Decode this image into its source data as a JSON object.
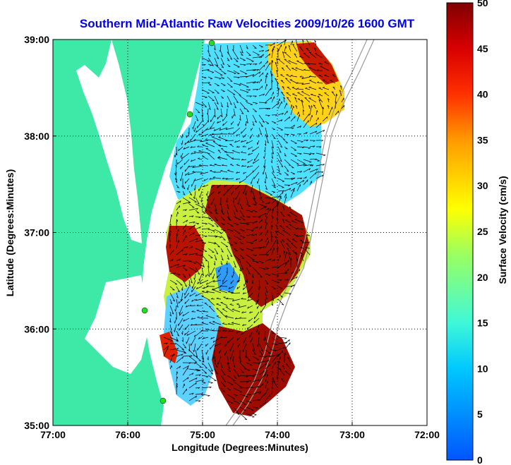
{
  "title": "Southern Mid-Atlantic Raw Velocities 2009/10/26 1600 GMT",
  "title_color": "#0000ee",
  "x_axis": {
    "label": "Longitude (Degrees:Minutes)",
    "ticks": [
      "77:00",
      "76:00",
      "75:00",
      "74:00",
      "73:00",
      "72:00"
    ]
  },
  "y_axis": {
    "label": "Latitude (Degrees:Minutes)",
    "ticks": [
      "39:00",
      "38:00",
      "37:00",
      "36:00",
      "35:00"
    ]
  },
  "colorbar": {
    "label": "Surface Velocity (cm/s)",
    "ticks": [
      "50",
      "45",
      "40",
      "35",
      "30",
      "25",
      "20",
      "15",
      "10",
      "5",
      "0"
    ],
    "min": 0,
    "max": 50
  },
  "colors": {
    "land": "#3ee8a6",
    "water": "#ffffff",
    "arrows": "#000000",
    "stations": "#22dd22"
  },
  "chart_data": {
    "type": "heatmap",
    "title": "Southern Mid-Atlantic Raw Velocities 2009/10/26 1600 GMT",
    "xlabel": "Longitude (Degrees:Minutes)",
    "ylabel": "Latitude (Degrees:Minutes)",
    "xlim": [
      -77,
      -72
    ],
    "ylim": [
      35,
      39
    ],
    "grid": true,
    "colorbar_label": "Surface Velocity (cm/s)",
    "colorbar_range": [
      0,
      50
    ],
    "colormap": "jet"
  }
}
